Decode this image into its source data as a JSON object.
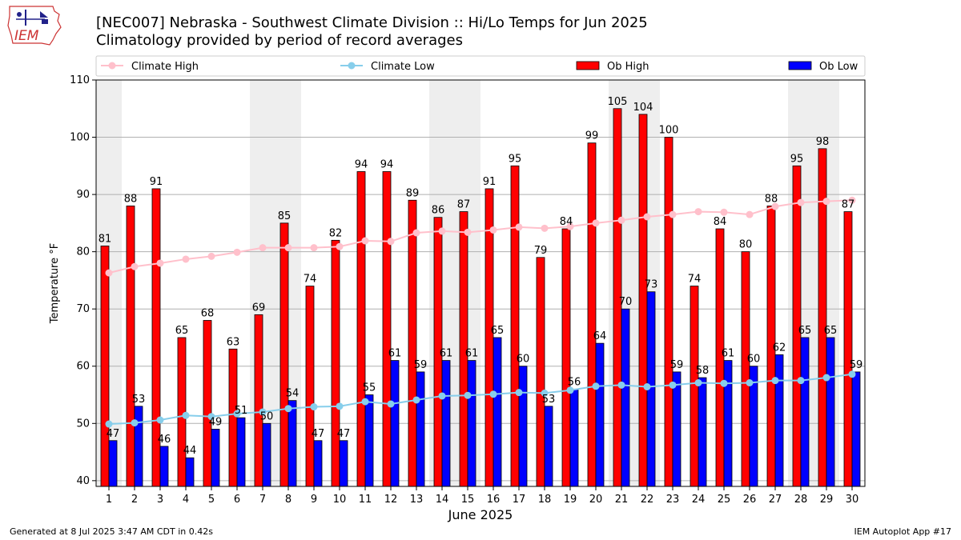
{
  "header": {
    "title_line1": "[NEC007] Nebraska - Southwest Climate Division :: Hi/Lo Temps for Jun 2025",
    "title_line2": "Climatology provided by period of record averages",
    "logo_text": "IEM"
  },
  "footer": {
    "left": "Generated at 8 Jul 2025 3:47 AM CDT in 0.42s",
    "right": "IEM Autoplot App #17"
  },
  "colors": {
    "ob_high": "#ff0000",
    "ob_low": "#0000ff",
    "climate_high": "#ffc0cb",
    "climate_low": "#87ceeb",
    "weekend_shade": "#eeeeee",
    "grid": "#b0b0b0"
  },
  "chart_data": {
    "type": "bar",
    "xlabel": "June 2025",
    "ylabel": "Temperature °F",
    "ylim": [
      39,
      110
    ],
    "yticks": [
      40,
      50,
      60,
      70,
      80,
      90,
      100,
      110
    ],
    "grid": true,
    "legend_position": "top",
    "categories": [
      "1",
      "2",
      "3",
      "4",
      "5",
      "6",
      "7",
      "8",
      "9",
      "10",
      "11",
      "12",
      "13",
      "14",
      "15",
      "16",
      "17",
      "18",
      "19",
      "20",
      "21",
      "22",
      "23",
      "24",
      "25",
      "26",
      "27",
      "28",
      "29",
      "30"
    ],
    "shaded_weekend_days": [
      1,
      7,
      8,
      14,
      15,
      21,
      22,
      28,
      29
    ],
    "series": [
      {
        "name": "Climate High",
        "kind": "line",
        "values": [
          76.3,
          77.4,
          78.0,
          78.7,
          79.2,
          79.9,
          80.7,
          80.7,
          80.7,
          80.9,
          81.9,
          81.8,
          83.3,
          83.6,
          83.4,
          83.8,
          84.3,
          84.1,
          84.4,
          85.0,
          85.5,
          86.1,
          86.5,
          87.0,
          86.9,
          86.5,
          87.9,
          88.6,
          88.8,
          89.0
        ]
      },
      {
        "name": "Climate Low",
        "kind": "line",
        "values": [
          49.9,
          50.1,
          50.6,
          51.4,
          51.2,
          51.7,
          52.0,
          52.6,
          52.9,
          53.0,
          53.8,
          53.4,
          54.1,
          54.8,
          54.9,
          55.1,
          55.4,
          55.3,
          55.8,
          56.5,
          56.7,
          56.4,
          56.7,
          57.1,
          57.0,
          57.1,
          57.5,
          57.5,
          58.0,
          58.6
        ]
      },
      {
        "name": "Ob High",
        "kind": "bar",
        "values": [
          81,
          88,
          91,
          65,
          68,
          63,
          69,
          85,
          74,
          82,
          94,
          94,
          89,
          86,
          87,
          91,
          95,
          79,
          84,
          99,
          105,
          104,
          100,
          74,
          84,
          80,
          88,
          95,
          98,
          87
        ]
      },
      {
        "name": "Ob Low",
        "kind": "bar",
        "values": [
          47,
          53,
          46,
          44,
          49,
          51,
          50,
          54,
          47,
          47,
          55,
          61,
          59,
          61,
          61,
          65,
          60,
          53,
          56,
          64,
          70,
          73,
          59,
          58,
          61,
          60,
          62,
          65,
          65,
          59
        ]
      }
    ]
  }
}
